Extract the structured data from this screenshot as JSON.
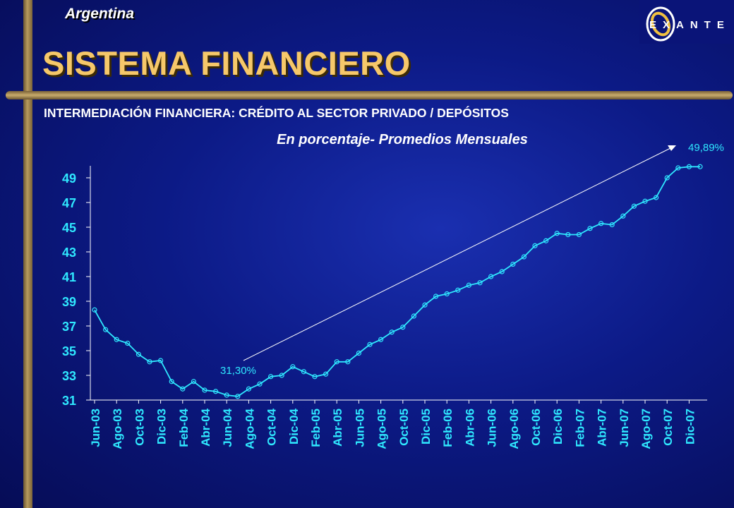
{
  "header": {
    "country": "Argentina",
    "title": "SISTEMA FINANCIERO",
    "logo_text": "EXANTE"
  },
  "chart_data": {
    "type": "line",
    "title": "INTERMEDIACIÓN FINANCIERA: CRÉDITO AL SECTOR PRIVADO / DEPÓSITOS",
    "subtitle": "En porcentaje- Promedios Mensuales",
    "xlabel": "",
    "ylabel": "",
    "ylim": [
      31,
      50
    ],
    "yticks": [
      31,
      33,
      35,
      37,
      39,
      41,
      43,
      45,
      47,
      49
    ],
    "grid": false,
    "x_tick_labels": [
      "Jun-03",
      "Ago-03",
      "Oct-03",
      "Dic-03",
      "Feb-04",
      "Abr-04",
      "Jun-04",
      "Ago-04",
      "Oct-04",
      "Dic-04",
      "Feb-05",
      "Abr-05",
      "Jun-05",
      "Ago-05",
      "Oct-05",
      "Dic-05",
      "Feb-06",
      "Abr-06",
      "Jun-06",
      "Ago-06",
      "Oct-06",
      "Dic-06",
      "Feb-07",
      "Abr-07",
      "Jun-07",
      "Ago-07",
      "Oct-07",
      "Dic-07"
    ],
    "series": [
      {
        "values": [
          38.3,
          36.7,
          35.9,
          35.6,
          34.7,
          34.1,
          34.2,
          32.5,
          31.9,
          32.5,
          31.8,
          31.7,
          31.4,
          31.3,
          31.9,
          32.3,
          32.9,
          33.0,
          33.7,
          33.3,
          32.9,
          33.1,
          34.1,
          34.1,
          34.8,
          35.5,
          35.9,
          36.5,
          36.9,
          37.8,
          38.7,
          39.4,
          39.6,
          39.9,
          40.3,
          40.5,
          41.0,
          41.4,
          42.0,
          42.6,
          43.5,
          43.9,
          44.5,
          44.4,
          44.4,
          44.9,
          45.3,
          45.2,
          45.9,
          46.7,
          47.1,
          47.4,
          49.0,
          49.8,
          49.9,
          49.9
        ],
        "color": "#2fe8ff"
      }
    ],
    "annotations": [
      {
        "text": "31,30%",
        "index": 13,
        "value": 31.3
      },
      {
        "text": "49,89%",
        "index": 54,
        "value": 49.89
      }
    ]
  }
}
